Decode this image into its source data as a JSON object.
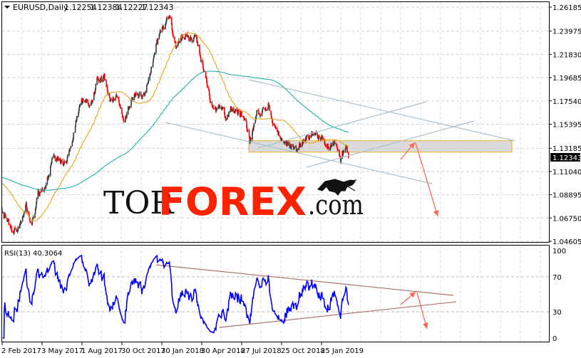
{
  "header": {
    "symbol": "EURUSD,Daily",
    "open": "1.12254",
    "high": "1.12384",
    "low": "1.12227",
    "close": "1.12343",
    "menu_icon": "triangle-down-icon"
  },
  "logo": {
    "part1": "TOR",
    "part2": "FOREX",
    "part3": ".com",
    "icon": "bull-icon"
  },
  "colors": {
    "bull_candle": "#2f3f3f",
    "bear_candle": "#ff0000",
    "ma_fast": "#e8a317",
    "ma_slow": "#20b2a6",
    "trendlines": "#a9c0d0",
    "zone_border": "#e8b030",
    "arrows": "#ff6655",
    "rsi": "#0000ff",
    "rsi_lines": "#b07070",
    "logo_red": "#ff2200"
  },
  "chart_data": [
    {
      "type": "candlestick",
      "title": "EURUSD,Daily",
      "price_ticks": [
        "1.26185",
        "1.23975",
        "1.21830",
        "1.19685",
        "1.17540",
        "1.15395",
        "1.13185",
        "1.11040",
        "1.08895",
        "1.06750",
        "1.04605"
      ],
      "ylim": [
        1.04605,
        1.26185
      ],
      "current_price": "1.12343",
      "x_ticks": [
        "2 Feb 2017",
        "3 May 2017",
        "1 Aug 2017",
        "30 Oct 2017",
        "30 Jan 2018",
        "30 Apr 2018",
        "27 Jul 2018",
        "25 Oct 2018",
        "25 Jan 2019"
      ],
      "grid": true,
      "closes": [
        [
          "2017-02-02",
          1.076
        ],
        [
          "2017-02-15",
          1.062
        ],
        [
          "2017-03-01",
          1.055
        ],
        [
          "2017-03-15",
          1.062
        ],
        [
          "2017-03-28",
          1.08
        ],
        [
          "2017-04-10",
          1.06
        ],
        [
          "2017-04-25",
          1.09
        ],
        [
          "2017-05-10",
          1.092
        ],
        [
          "2017-05-25",
          1.12
        ],
        [
          "2017-06-10",
          1.12
        ],
        [
          "2017-06-25",
          1.118
        ],
        [
          "2017-07-10",
          1.14
        ],
        [
          "2017-07-25",
          1.165
        ],
        [
          "2017-08-05",
          1.18
        ],
        [
          "2017-08-20",
          1.175
        ],
        [
          "2017-09-05",
          1.195
        ],
        [
          "2017-09-20",
          1.198
        ],
        [
          "2017-10-05",
          1.175
        ],
        [
          "2017-10-20",
          1.18
        ],
        [
          "2017-11-05",
          1.16
        ],
        [
          "2017-11-20",
          1.175
        ],
        [
          "2017-12-05",
          1.185
        ],
        [
          "2017-12-20",
          1.18
        ],
        [
          "2018-01-05",
          1.205
        ],
        [
          "2018-01-15",
          1.225
        ],
        [
          "2018-01-30",
          1.245
        ],
        [
          "2018-02-15",
          1.25
        ],
        [
          "2018-02-28",
          1.225
        ],
        [
          "2018-03-15",
          1.235
        ],
        [
          "2018-03-30",
          1.232
        ],
        [
          "2018-04-15",
          1.235
        ],
        [
          "2018-04-25",
          1.215
        ],
        [
          "2018-05-10",
          1.19
        ],
        [
          "2018-05-25",
          1.165
        ],
        [
          "2018-06-10",
          1.175
        ],
        [
          "2018-06-20",
          1.16
        ],
        [
          "2018-07-05",
          1.17
        ],
        [
          "2018-07-20",
          1.168
        ],
        [
          "2018-08-05",
          1.155
        ],
        [
          "2018-08-15",
          1.135
        ],
        [
          "2018-08-30",
          1.165
        ],
        [
          "2018-09-15",
          1.165
        ],
        [
          "2018-09-25",
          1.175
        ],
        [
          "2018-10-10",
          1.15
        ],
        [
          "2018-10-25",
          1.14
        ],
        [
          "2018-11-10",
          1.135
        ],
        [
          "2018-11-25",
          1.13
        ],
        [
          "2018-12-10",
          1.138
        ],
        [
          "2018-12-25",
          1.142
        ],
        [
          "2019-01-10",
          1.15
        ],
        [
          "2019-01-25",
          1.14
        ],
        [
          "2019-02-10",
          1.132
        ],
        [
          "2019-02-25",
          1.135
        ],
        [
          "2019-03-07",
          1.12
        ],
        [
          "2019-03-20",
          1.135
        ],
        [
          "2019-03-25",
          1.12343
        ]
      ],
      "moving_averages": [
        {
          "color": "#e8a317"
        },
        {
          "color": "#20b2a6"
        }
      ],
      "support_zone": [
        1.1282,
        1.1387
      ]
    },
    {
      "type": "line",
      "title": "RSI(13) 40.3064",
      "indicator": "RSI(13)",
      "last_value": "40.3064",
      "y_ticks": [
        "100",
        "70",
        "30",
        "0"
      ],
      "ylim": [
        0,
        100
      ],
      "levels": [
        70,
        30
      ]
    }
  ]
}
